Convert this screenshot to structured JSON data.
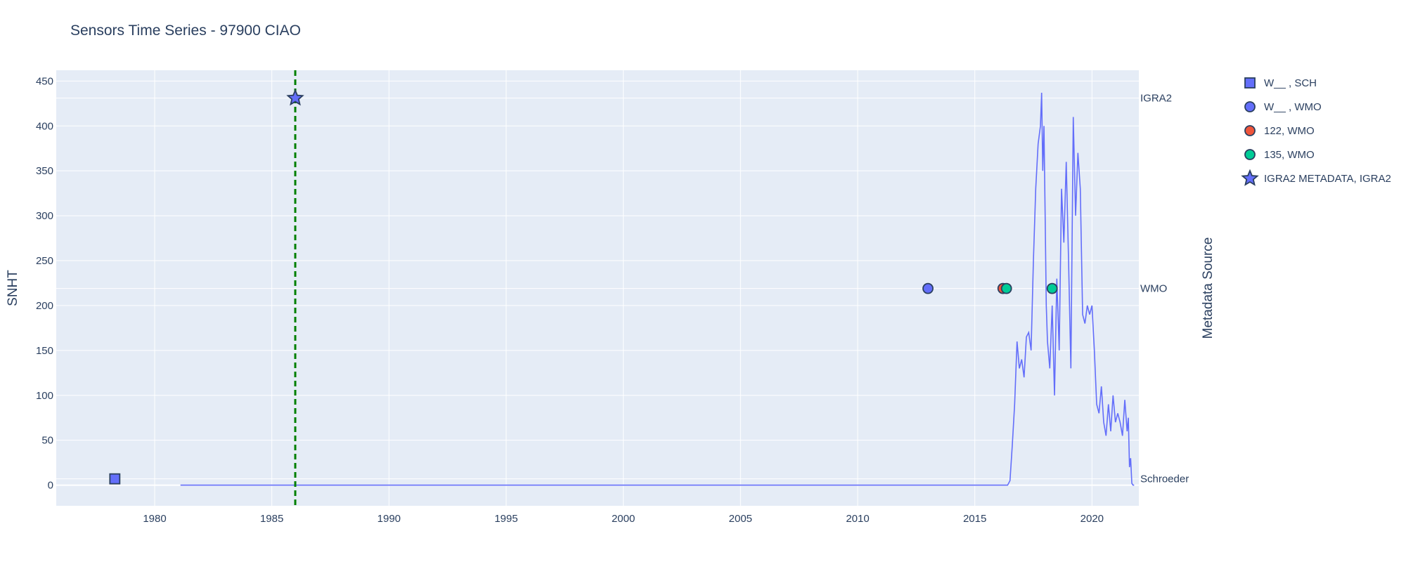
{
  "chart_data": {
    "type": "line",
    "title": "Sensors Time Series - 97900 CIAO",
    "ylabel": "SNHT",
    "y2label": "Metadata Source",
    "xlim": [
      1975.8,
      2022.0
    ],
    "ylim": [
      -23,
      462
    ],
    "x_ticks": [
      1980,
      1985,
      1990,
      1995,
      2000,
      2005,
      2010,
      2015,
      2020
    ],
    "y_ticks": [
      0,
      50,
      100,
      150,
      200,
      250,
      300,
      350,
      400,
      450
    ],
    "y2_ticks": [
      {
        "label": "IGRA2",
        "value": 431
      },
      {
        "label": "WMO",
        "value": 219
      },
      {
        "label": "Schroeder",
        "value": 7
      }
    ],
    "colors": {
      "plot_bg": "#e5ecf6",
      "grid": "#ffffff",
      "snht_line": "#636efa",
      "vline": "#008000",
      "marker_outline": "#2a3f5f"
    },
    "vertical_line": {
      "x": 1986.0,
      "style": "dashed",
      "color": "#008000"
    },
    "snht_series": {
      "x": [
        1981.1,
        2016.4,
        2016.5,
        2016.6,
        2016.7,
        2016.8,
        2016.9,
        2017.0,
        2017.1,
        2017.2,
        2017.3,
        2017.4,
        2017.5,
        2017.6,
        2017.7,
        2017.8,
        2017.85,
        2017.9,
        2017.95,
        2018.0,
        2018.05,
        2018.1,
        2018.2,
        2018.3,
        2018.4,
        2018.5,
        2018.6,
        2018.7,
        2018.8,
        2018.9,
        2019.0,
        2019.1,
        2019.2,
        2019.3,
        2019.4,
        2019.5,
        2019.6,
        2019.7,
        2019.8,
        2019.9,
        2020.0,
        2020.1,
        2020.2,
        2020.3,
        2020.4,
        2020.5,
        2020.6,
        2020.7,
        2020.8,
        2020.9,
        2021.0,
        2021.1,
        2021.2,
        2021.3,
        2021.4,
        2021.5,
        2021.55,
        2021.6,
        2021.65,
        2021.7,
        2021.75,
        2021.8
      ],
      "y": [
        0,
        0,
        5,
        45,
        90,
        160,
        130,
        140,
        120,
        165,
        170,
        150,
        250,
        330,
        380,
        400,
        437,
        350,
        400,
        300,
        200,
        160,
        130,
        200,
        100,
        230,
        150,
        330,
        270,
        360,
        250,
        130,
        410,
        300,
        370,
        330,
        190,
        180,
        200,
        190,
        200,
        150,
        90,
        80,
        110,
        70,
        55,
        90,
        60,
        100,
        70,
        80,
        70,
        55,
        95,
        60,
        75,
        20,
        30,
        2,
        0,
        0
      ]
    },
    "series": [
      {
        "name": "W__ , SCH",
        "marker": "square",
        "color": "#636efa",
        "x": [
          1978.3
        ],
        "y": [
          7
        ]
      },
      {
        "name": "W__ , WMO",
        "marker": "circle",
        "color": "#636efa",
        "x": [
          2013.0
        ],
        "y": [
          219
        ]
      },
      {
        "name": "122, WMO",
        "marker": "circle",
        "color": "#ef553b",
        "x": [
          2016.2
        ],
        "y": [
          219
        ]
      },
      {
        "name": "135, WMO",
        "marker": "circle",
        "color": "#00cc96",
        "x": [
          2016.35,
          2018.3
        ],
        "y": [
          219,
          219
        ]
      },
      {
        "name": "IGRA2 METADATA, IGRA2",
        "marker": "star",
        "color": "#636efa",
        "x": [
          1986.0
        ],
        "y": [
          431
        ]
      }
    ]
  }
}
